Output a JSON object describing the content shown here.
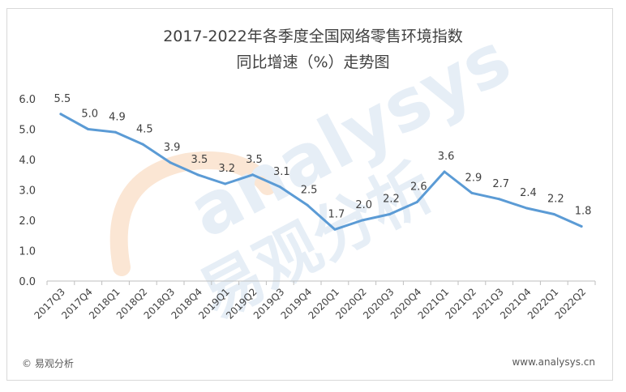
{
  "title_line1": "2017-2022年各季度全国网络零售环境指数",
  "title_line2": "同比增速（%）走势图",
  "footer_left": "© 易观分析",
  "footer_right": "www.analysys.cn",
  "watermark_en": "analysys",
  "watermark_cn": "易观分析",
  "colors": {
    "line": "#5b9bd5",
    "text": "#404040",
    "axis": "#bfbfbf",
    "watermark": "#e6eef6",
    "watermark_orange": "#fbe6d4"
  },
  "chart_data": {
    "type": "line",
    "categories": [
      "2017Q3",
      "2017Q4",
      "2018Q1",
      "2018Q2",
      "2018Q3",
      "2018Q4",
      "2019Q1",
      "2019Q2",
      "2019Q3",
      "2019Q4",
      "2020Q1",
      "2020Q2",
      "2020Q3",
      "2020Q4",
      "2021Q1",
      "2021Q2",
      "2021Q3",
      "2021Q4",
      "2022Q1",
      "2022Q2"
    ],
    "values": [
      5.5,
      5.0,
      4.9,
      4.5,
      3.9,
      3.5,
      3.2,
      3.5,
      3.1,
      2.5,
      1.7,
      2.0,
      2.2,
      2.6,
      3.6,
      2.9,
      2.7,
      2.4,
      2.2,
      1.8
    ],
    "yticks": [
      "0.0",
      "1.0",
      "2.0",
      "3.0",
      "4.0",
      "5.0",
      "6.0"
    ],
    "ylim": [
      0,
      6
    ],
    "data_labels": true,
    "grid": false,
    "legend": "none"
  }
}
